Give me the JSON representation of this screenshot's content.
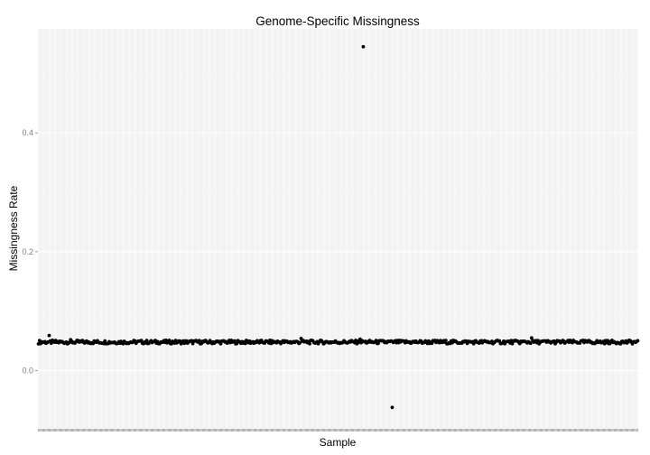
{
  "chart_data": {
    "type": "scatter",
    "title": "Genome-Specific Missingness",
    "xlabel": "Sample",
    "ylabel": "Missingness Rate",
    "ylim": [
      -0.098,
      0.575
    ],
    "yticks": [
      0.0,
      0.2,
      0.4
    ],
    "ytick_labels": [
      "0.0",
      "0.2",
      "0.4"
    ],
    "x_tick_labels_visible": false,
    "grid": true,
    "background_color": "#ebebeb",
    "gridline_color": "#ffffff",
    "point_color": "#000000",
    "sample_count": 560,
    "typical_value": 0.048,
    "typical_range": [
      0.044,
      0.054
    ],
    "outliers": [
      {
        "sample_index": 10,
        "value": 0.059
      },
      {
        "sample_index": 30,
        "value": 0.052
      },
      {
        "sample_index": 245,
        "value": 0.054
      },
      {
        "sample_index": 300,
        "value": 0.053
      },
      {
        "sample_index": 303,
        "value": 0.545
      },
      {
        "sample_index": 330,
        "value": -0.062
      },
      {
        "sample_index": 460,
        "value": 0.055
      }
    ]
  }
}
